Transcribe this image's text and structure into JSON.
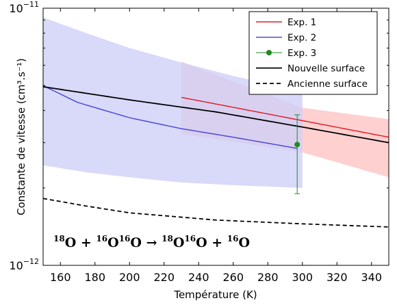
{
  "chart_data": {
    "type": "line",
    "xlabel": "Température (K)",
    "ylabel": "Constante de vitesse (cm³.s⁻¹)",
    "xlim": [
      150,
      350
    ],
    "ylim": [
      1e-12,
      1e-11
    ],
    "yscale": "log",
    "xticks": [
      "160",
      "180",
      "200",
      "220",
      "240",
      "260",
      "280",
      "300",
      "320",
      "340"
    ],
    "ytick_labels": [
      {
        "base": "10",
        "exp": "−11",
        "value": 1e-11
      },
      {
        "base": "10",
        "exp": "−12",
        "value": 1e-12
      }
    ],
    "annotation": {
      "text": "¹⁸O + ¹⁶O¹⁶O → ¹⁸O¹⁶O + ¹⁶O",
      "parts": [
        {
          "sup": "18",
          "t": "O"
        },
        {
          "t": " + "
        },
        {
          "sup": "16",
          "t": "O"
        },
        {
          "sup": "16",
          "t": "O"
        },
        {
          "t": " → "
        },
        {
          "sup": "18",
          "t": "O"
        },
        {
          "sup": "16",
          "t": "O"
        },
        {
          "t": " + "
        },
        {
          "sup": "16",
          "t": "O"
        }
      ]
    },
    "legend_position": "top-right",
    "series": [
      {
        "name": "Exp. 1",
        "color": "#e0202a",
        "style": "line",
        "x": [
          230,
          350
        ],
        "y": [
          4.5e-12,
          3.15e-12
        ],
        "band": {
          "x": [
            230,
            300,
            350
          ],
          "upper": [
            6.2e-12,
            4.1e-12,
            3.7e-12
          ],
          "lower": [
            3.25e-12,
            2.75e-12,
            2.2e-12
          ],
          "color": "#ffc4c4"
        }
      },
      {
        "name": "Exp. 2",
        "color": "#4a4ad6",
        "style": "line",
        "x": [
          150,
          170,
          200,
          230,
          260,
          297
        ],
        "y": [
          5e-12,
          4.3e-12,
          3.75e-12,
          3.4e-12,
          3.15e-12,
          2.85e-12
        ],
        "band": {
          "x": [
            150,
            175,
            200,
            230,
            260,
            300
          ],
          "upper": [
            9.2e-12,
            8e-12,
            7e-12,
            6.15e-12,
            5.45e-12,
            4.75e-12
          ],
          "lower": [
            2.45e-12,
            2.3e-12,
            2.2e-12,
            2.1e-12,
            2.05e-12,
            2e-12
          ],
          "color": "#cfd0f8"
        }
      },
      {
        "name": "Exp. 3",
        "color": "#1f8a1f",
        "style": "point",
        "x": [
          297
        ],
        "y": [
          2.95e-12
        ],
        "yerr_low": [
          1.9e-12
        ],
        "yerr_high": [
          3.85e-12
        ]
      },
      {
        "name": "Nouvelle surface",
        "color": "#000000",
        "style": "line",
        "x": [
          150,
          200,
          250,
          300,
          350
        ],
        "y": [
          4.95e-12,
          4.4e-12,
          3.95e-12,
          3.45e-12,
          3e-12
        ]
      },
      {
        "name": "Ancienne surface",
        "color": "#000000",
        "style": "dashed",
        "x": [
          150,
          175,
          200,
          250,
          300,
          350
        ],
        "y": [
          1.82e-12,
          1.7e-12,
          1.6e-12,
          1.5e-12,
          1.45e-12,
          1.41e-12
        ]
      }
    ]
  }
}
